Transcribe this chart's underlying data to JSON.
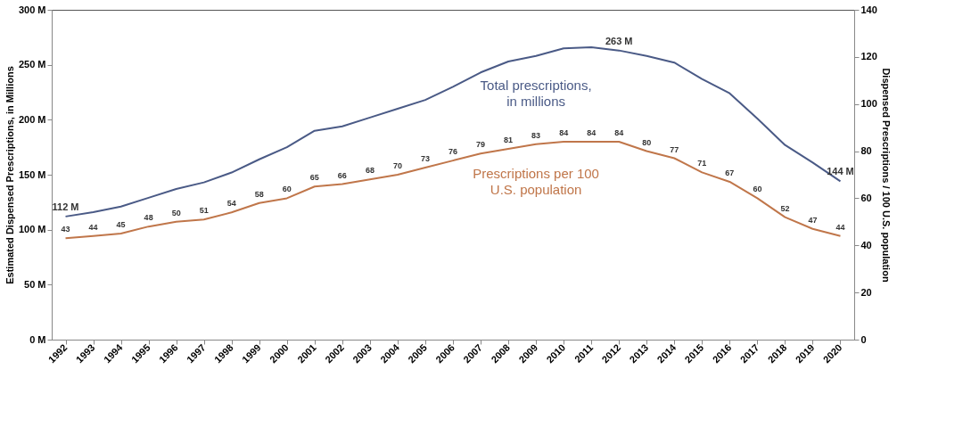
{
  "chart_data": {
    "type": "line",
    "ylabel": "Estimated Dispensed Prescriptions, in Millions",
    "y2label": "Dispensed Prescriptions / 100 U.S. population",
    "categories": [
      "1992",
      "1993",
      "1994",
      "1995",
      "1996",
      "1997",
      "1998",
      "1999",
      "2000",
      "2001",
      "2002",
      "2003",
      "2004",
      "2005",
      "2006",
      "2007",
      "2008",
      "2009",
      "2010",
      "2011",
      "2012",
      "2013",
      "2014",
      "2015",
      "2016",
      "2017",
      "2018",
      "2019",
      "2020"
    ],
    "series": [
      {
        "name": "Total prescriptions, in millions",
        "color": "#4a5a86",
        "values": [
          112,
          116,
          121,
          129,
          137,
          143,
          152,
          164,
          175,
          190,
          194,
          202,
          210,
          218,
          230,
          243,
          253,
          258,
          265,
          266,
          263,
          258,
          252,
          237,
          224,
          201,
          177,
          161,
          144
        ],
        "value_labels": [
          "112 M",
          null,
          null,
          null,
          null,
          null,
          null,
          null,
          null,
          null,
          null,
          null,
          null,
          null,
          null,
          null,
          null,
          null,
          null,
          null,
          "263 M",
          null,
          null,
          null,
          null,
          null,
          null,
          null,
          "144 M"
        ]
      },
      {
        "name": "Prescriptions per 100 U.S. population",
        "color": "#c0764a",
        "axis": "y2",
        "values": [
          43,
          44,
          45,
          48,
          50,
          51,
          54,
          58,
          60,
          65,
          66,
          68,
          70,
          73,
          76,
          79,
          81,
          83,
          84,
          84,
          84,
          80,
          77,
          71,
          67,
          60,
          52,
          47,
          44
        ],
        "value_labels": [
          "43",
          "44",
          "45",
          "48",
          "50",
          "51",
          "54",
          "58",
          "60",
          "65",
          "66",
          "68",
          "70",
          "73",
          "76",
          "79",
          "81",
          "83",
          "84",
          "84",
          "84",
          "80",
          "77",
          "71",
          "67",
          "60",
          "52",
          "47",
          "44"
        ]
      }
    ],
    "ylim": [
      0,
      300
    ],
    "yticks": [
      {
        "value": 0,
        "label": "0 M"
      },
      {
        "value": 50,
        "label": "50 M"
      },
      {
        "value": 100,
        "label": "100 M"
      },
      {
        "value": 150,
        "label": "150 M"
      },
      {
        "value": 200,
        "label": "200 M"
      },
      {
        "value": 250,
        "label": "250 M"
      },
      {
        "value": 300,
        "label": "300 M"
      }
    ],
    "y2lim": [
      0,
      140
    ],
    "y2ticks": [
      0,
      20,
      40,
      60,
      80,
      100,
      120,
      140
    ],
    "grid": false,
    "legend": false,
    "marker": "none",
    "line_style": "solid"
  }
}
